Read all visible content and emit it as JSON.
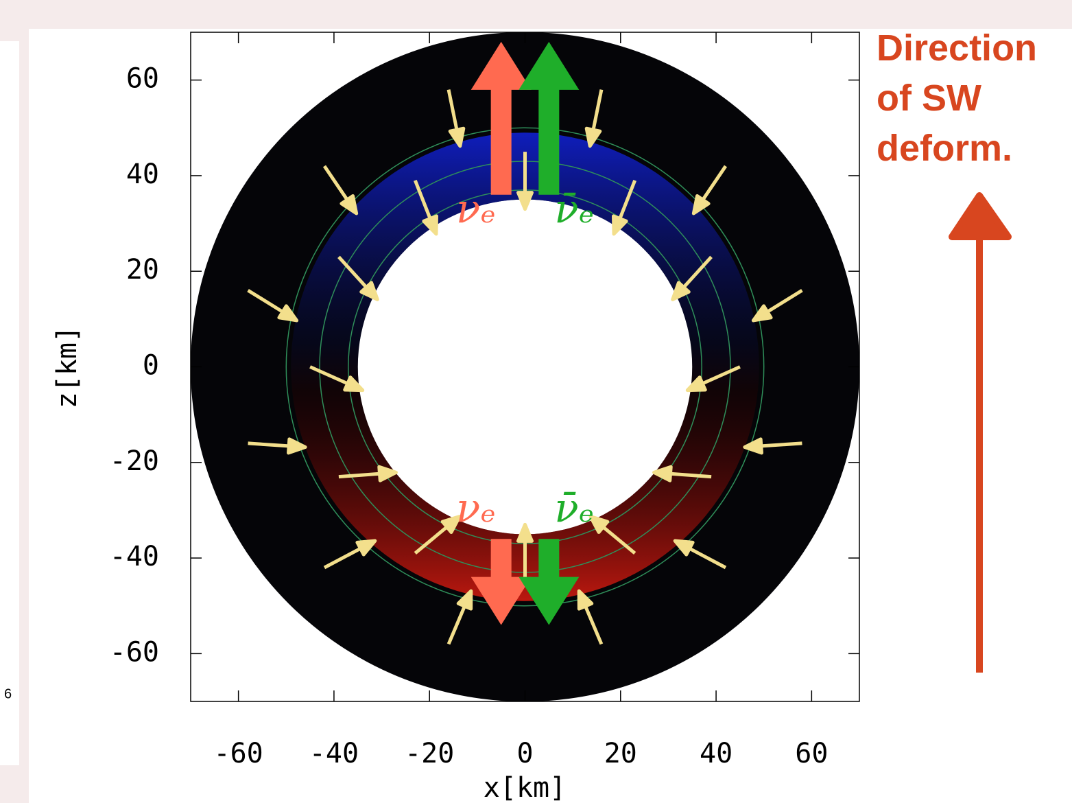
{
  "chart_data": {
    "type": "vector",
    "xlabel": "x[km]",
    "ylabel": "z[km]",
    "xlim": [
      -70,
      70
    ],
    "ylim": [
      -70,
      70
    ],
    "xticks": [
      -60,
      -40,
      -20,
      0,
      20,
      40,
      60
    ],
    "yticks": [
      -60,
      -40,
      -20,
      0,
      20,
      40,
      60
    ],
    "domain_radii": [
      35,
      70
    ],
    "contour_radii": [
      37,
      43,
      50
    ],
    "color": "#f3df8c",
    "x": [
      45,
      39,
      23,
      0,
      -23,
      -39,
      -45,
      -39,
      -23,
      0,
      23,
      39,
      58,
      42,
      16,
      -16,
      -42,
      -58,
      -58,
      -42,
      -16,
      16,
      42,
      58
    ],
    "y": [
      0,
      23,
      39,
      45,
      39,
      23,
      0,
      -23,
      -39,
      -45,
      -39,
      -23,
      16,
      42,
      58,
      58,
      42,
      16,
      -16,
      -42,
      -58,
      -58,
      -42,
      -16
    ],
    "u": [
      -11.0,
      -8.1,
      -4.4,
      0,
      4.4,
      8.1,
      11.0,
      12.0,
      9.3,
      0,
      -9.3,
      -12.0,
      -10.2,
      -6.7,
      -2.4,
      2.4,
      6.7,
      10.2,
      12.0,
      10.6,
      4.7,
      -4.7,
      -10.6,
      -12.0
    ],
    "v": [
      -4.9,
      -8.9,
      -11.2,
      -12,
      -11.2,
      -8.9,
      -4.9,
      0.9,
      7.7,
      12,
      7.7,
      0.9,
      -6.3,
      -9.9,
      -11.8,
      -11.8,
      -9.9,
      -6.3,
      -0.8,
      5.6,
      11.1,
      11.1,
      5.6,
      -0.8
    ],
    "flux_arrows": [
      {
        "name": "νₑ",
        "color": "#ff6a50",
        "x": -5,
        "z0": 36,
        "z1": 68
      },
      {
        "name": "ν̄ₑ",
        "color": "#1fae2a",
        "x": 5,
        "z0": 36,
        "z1": 68
      },
      {
        "name": "νₑ",
        "color": "#ff6a50",
        "x": -5,
        "z0": -36,
        "z1": -54
      },
      {
        "name": "ν̄ₑ",
        "color": "#1fae2a",
        "x": 5,
        "z0": -36,
        "z1": -54
      }
    ],
    "annotation": [
      "Direction",
      "of SW",
      "deform."
    ]
  },
  "page_fragment": {
    "page_number": "6"
  }
}
